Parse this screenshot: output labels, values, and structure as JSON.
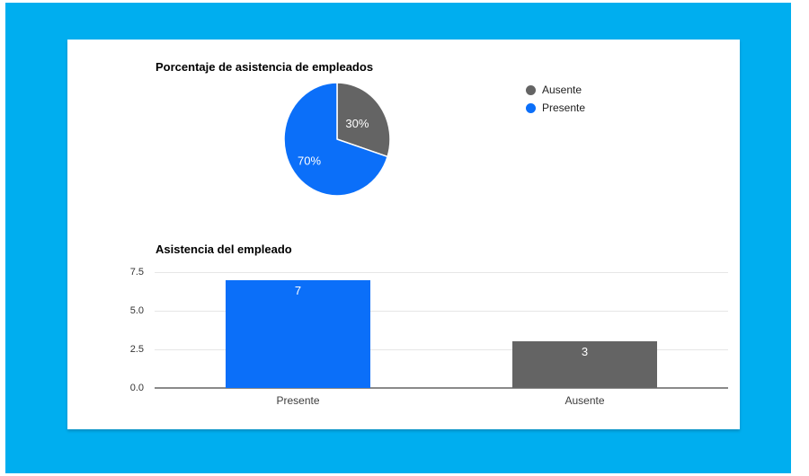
{
  "theme": {
    "outer_background": "#ffffff",
    "panel_color": "#00aeef",
    "card_background": "#ffffff",
    "grid_color": "#e6e6e6",
    "axis_line_color": "#8a8a8a",
    "title_color": "#000000",
    "tick_label_color": "#333333",
    "value_label_color": "#ffffff",
    "blue": "#0b6ff9",
    "gray": "#646464"
  },
  "chart_data": [
    {
      "type": "pie",
      "title": "Porcentaje de asistencia de empleados",
      "start_angle_deg": 0,
      "direction": "clockwise",
      "slices": [
        {
          "label": "Ausente",
          "value": 30,
          "display": "30%",
          "color": "#646464"
        },
        {
          "label": "Presente",
          "value": 70,
          "display": "70%",
          "color": "#0b6ff9"
        }
      ],
      "legend_position": "right",
      "legend": [
        {
          "label": "Ausente",
          "color": "#646464"
        },
        {
          "label": "Presente",
          "color": "#0b6ff9"
        }
      ]
    },
    {
      "type": "bar",
      "title": "Asistencia del empleado",
      "categories": [
        "Presente",
        "Ausente"
      ],
      "values": [
        7,
        3
      ],
      "bar_labels": [
        "7",
        "3"
      ],
      "colors": [
        "#0b6ff9",
        "#646464"
      ],
      "y_ticks": [
        "0.0",
        "2.5",
        "5.0",
        "7.5"
      ],
      "ylim": [
        0,
        7.5
      ],
      "grid": true,
      "xlabel": "",
      "ylabel": ""
    }
  ]
}
